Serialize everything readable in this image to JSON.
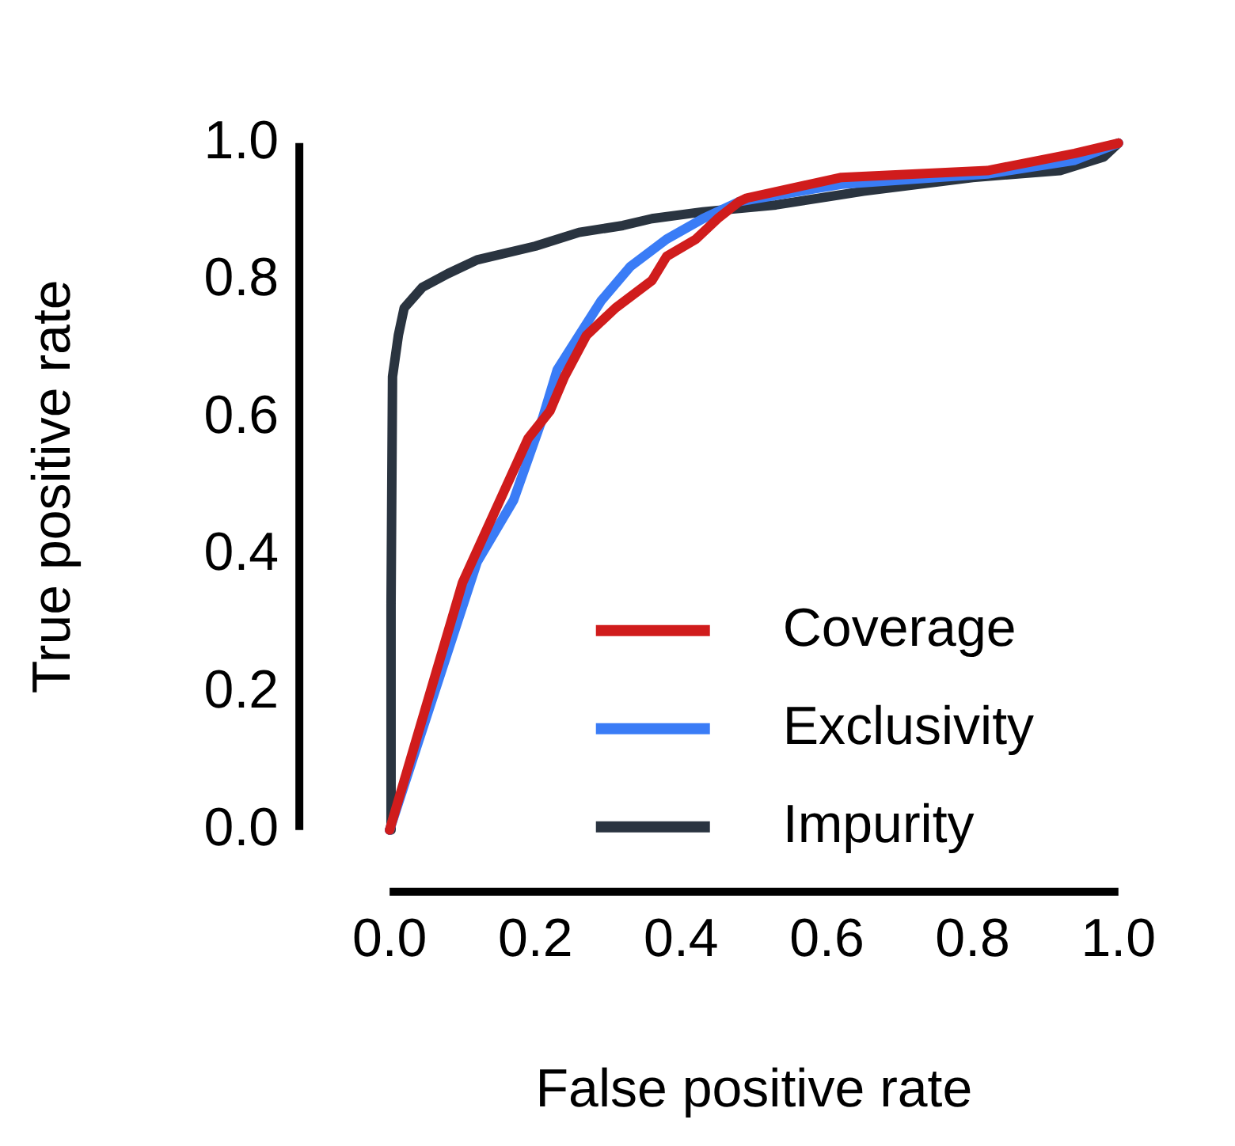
{
  "chart_data": {
    "type": "line",
    "xlabel": "False positive rate",
    "ylabel": "True positive rate",
    "xlim": [
      0,
      1
    ],
    "ylim": [
      0,
      1
    ],
    "xticks": [
      {
        "value": 0,
        "label": "0.0"
      },
      {
        "value": 0.2,
        "label": "0.2"
      },
      {
        "value": 0.4,
        "label": "0.4"
      },
      {
        "value": 0.6,
        "label": "0.6"
      },
      {
        "value": 0.8,
        "label": "0.8"
      },
      {
        "value": 1,
        "label": "1.0"
      }
    ],
    "yticks": [
      {
        "value": 0,
        "label": "0.0"
      },
      {
        "value": 0.2,
        "label": "0.2"
      },
      {
        "value": 0.4,
        "label": "0.4"
      },
      {
        "value": 0.6,
        "label": "0.6"
      },
      {
        "value": 0.8,
        "label": "0.8"
      },
      {
        "value": 1,
        "label": "1.0"
      }
    ],
    "grid": false,
    "legend": "bottom right",
    "marker": "none",
    "line_style": "solid",
    "series": [
      {
        "name": "Coverage",
        "color": "#d01c1c",
        "x": [
          0,
          0.1,
          0.19,
          0.22,
          0.24,
          0.27,
          0.31,
          0.36,
          0.38,
          0.42,
          0.45,
          0.48,
          0.49,
          0.62,
          0.82,
          0.94,
          1
        ],
        "values": [
          0,
          0.36,
          0.57,
          0.61,
          0.66,
          0.72,
          0.76,
          0.8,
          0.835,
          0.86,
          0.89,
          0.915,
          0.92,
          0.95,
          0.96,
          0.985,
          1
        ]
      },
      {
        "name": "Exclusivity",
        "color": "#3a7cf6",
        "x": [
          0,
          0.12,
          0.17,
          0.21,
          0.23,
          0.26,
          0.29,
          0.33,
          0.38,
          0.43,
          0.48,
          0.62,
          0.82,
          0.94,
          1
        ],
        "values": [
          0,
          0.39,
          0.48,
          0.6,
          0.67,
          0.72,
          0.77,
          0.82,
          0.86,
          0.89,
          0.915,
          0.94,
          0.955,
          0.975,
          1
        ]
      },
      {
        "name": "Impurity",
        "color": "#2a3440",
        "x": [
          0,
          0.002,
          0.004,
          0.012,
          0.02,
          0.045,
          0.08,
          0.12,
          0.2,
          0.26,
          0.32,
          0.36,
          0.43,
          0.53,
          0.65,
          0.8,
          0.92,
          0.98,
          1
        ],
        "values": [
          0,
          0.33,
          0.66,
          0.72,
          0.76,
          0.79,
          0.81,
          0.83,
          0.85,
          0.87,
          0.88,
          0.89,
          0.9,
          0.91,
          0.93,
          0.95,
          0.96,
          0.98,
          1
        ]
      }
    ]
  }
}
